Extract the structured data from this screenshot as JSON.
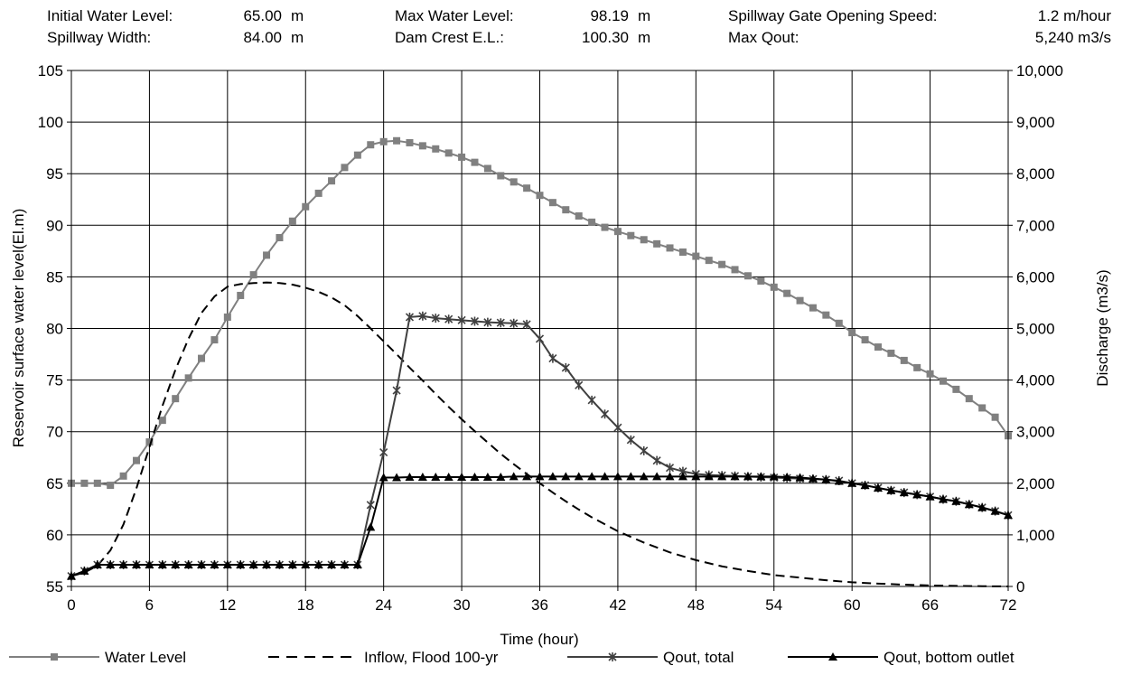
{
  "header": {
    "initial_water_level": {
      "label": "Initial Water Level:",
      "value": "65.00",
      "unit": "m"
    },
    "spillway_width": {
      "label": "Spillway Width:",
      "value": "84.00",
      "unit": "m"
    },
    "max_water_level": {
      "label": "Max Water Level:",
      "value": "98.19",
      "unit": "m"
    },
    "dam_crest": {
      "label": "Dam Crest E.L.:",
      "value": "100.30",
      "unit": "m"
    },
    "gate_speed": {
      "label": "Spillway Gate Opening Speed:",
      "value": "1.2 m/hour"
    },
    "max_qout": {
      "label": "Max Qout:",
      "value": "5,240 m3/s"
    }
  },
  "chart_data": {
    "type": "line",
    "xlabel": "Time (hour)",
    "ylabel": "Reservoir surface water level(El.m)",
    "y2label": "Discharge (m3/s)",
    "xlim": [
      0,
      72
    ],
    "ylim": [
      55,
      105
    ],
    "y2lim": [
      0,
      10000
    ],
    "x_ticks": [
      0,
      6,
      12,
      18,
      24,
      30,
      36,
      42,
      48,
      54,
      60,
      66,
      72
    ],
    "x_tick_labels": [
      "0",
      "6",
      "12",
      "18",
      "24",
      "30",
      "36",
      "42",
      "48",
      "54",
      "60",
      "66",
      "72"
    ],
    "y_ticks": [
      55,
      60,
      65,
      70,
      75,
      80,
      85,
      90,
      95,
      100,
      105
    ],
    "y_tick_labels": [
      "55",
      "60",
      "65",
      "70",
      "75",
      "80",
      "85",
      "90",
      "95",
      "100",
      "105"
    ],
    "y2_ticks": [
      0,
      1000,
      2000,
      3000,
      4000,
      5000,
      6000,
      7000,
      8000,
      9000,
      10000
    ],
    "y2_tick_labels": [
      "0",
      "1,000",
      "2,000",
      "3,000",
      "4,000",
      "5,000",
      "6,000",
      "7,000",
      "8,000",
      "9,000",
      "10,000"
    ],
    "grid": true,
    "legend_position": "bottom",
    "series": [
      {
        "name": "Water Level",
        "axis": "left",
        "marker": "square",
        "color": "#808080",
        "x": [
          0,
          1,
          2,
          3,
          4,
          5,
          6,
          7,
          8,
          9,
          10,
          11,
          12,
          13,
          14,
          15,
          16,
          17,
          18,
          19,
          20,
          21,
          22,
          23,
          24,
          25,
          26,
          27,
          28,
          29,
          30,
          31,
          32,
          33,
          34,
          35,
          36,
          37,
          38,
          39,
          40,
          41,
          42,
          43,
          44,
          45,
          46,
          47,
          48,
          49,
          50,
          51,
          52,
          53,
          54,
          55,
          56,
          57,
          58,
          59,
          60,
          61,
          62,
          63,
          64,
          65,
          66,
          67,
          68,
          69,
          70,
          71,
          72
        ],
        "y": [
          65.0,
          65.0,
          65.0,
          64.8,
          65.7,
          67.2,
          69.0,
          71.1,
          73.2,
          75.2,
          77.1,
          78.9,
          81.1,
          83.2,
          85.2,
          87.1,
          88.8,
          90.4,
          91.8,
          93.1,
          94.3,
          95.6,
          96.8,
          97.8,
          98.1,
          98.19,
          98.0,
          97.7,
          97.4,
          97.0,
          96.6,
          96.1,
          95.5,
          94.8,
          94.2,
          93.6,
          92.9,
          92.2,
          91.5,
          90.9,
          90.3,
          89.8,
          89.4,
          89.0,
          88.6,
          88.2,
          87.8,
          87.4,
          87.0,
          86.6,
          86.2,
          85.7,
          85.1,
          84.6,
          84.0,
          83.4,
          82.7,
          82.0,
          81.3,
          80.5,
          79.6,
          78.9,
          78.2,
          77.6,
          76.9,
          76.2,
          75.6,
          74.9,
          74.1,
          73.2,
          72.3,
          71.4,
          69.6
        ]
      },
      {
        "name": "Inflow, Flood 100-yr",
        "axis": "right",
        "marker": "none",
        "style": "dashed",
        "color": "#000000",
        "x": [
          0,
          1,
          2,
          3,
          4,
          5,
          6,
          7,
          8,
          9,
          10,
          11,
          12,
          13,
          14,
          15,
          16,
          17,
          18,
          19,
          20,
          21,
          22,
          23,
          24,
          25,
          26,
          27,
          28,
          29,
          30,
          31,
          32,
          33,
          34,
          35,
          36,
          37,
          38,
          39,
          40,
          42,
          44,
          46,
          48,
          50,
          52,
          54,
          56,
          58,
          60,
          62,
          64,
          66,
          68,
          70,
          72
        ],
        "y": [
          200,
          270,
          400,
          700,
          1200,
          1900,
          2700,
          3500,
          4200,
          4800,
          5300,
          5620,
          5810,
          5860,
          5880,
          5890,
          5880,
          5850,
          5790,
          5710,
          5600,
          5450,
          5240,
          5000,
          4750,
          4500,
          4240,
          3990,
          3730,
          3480,
          3240,
          3010,
          2790,
          2570,
          2370,
          2180,
          2000,
          1820,
          1650,
          1490,
          1340,
          1070,
          850,
          660,
          510,
          390,
          300,
          220,
          170,
          120,
          80,
          55,
          35,
          20,
          10,
          5,
          0
        ]
      },
      {
        "name": "Qout, total",
        "axis": "right",
        "marker": "star",
        "color": "#404040",
        "x": [
          0,
          1,
          2,
          3,
          4,
          5,
          6,
          7,
          8,
          9,
          10,
          11,
          12,
          13,
          14,
          15,
          16,
          17,
          18,
          19,
          20,
          21,
          22,
          23,
          24,
          25,
          26,
          27,
          28,
          29,
          30,
          31,
          32,
          33,
          34,
          35,
          36,
          37,
          38,
          39,
          40,
          41,
          42,
          43,
          44,
          45,
          46,
          47,
          48,
          49,
          50,
          51,
          52,
          53,
          54,
          55,
          56,
          57,
          58,
          59,
          60,
          61,
          62,
          63,
          64,
          65,
          66,
          67,
          68,
          69,
          70,
          71,
          72
        ],
        "y": [
          200,
          300,
          420,
          420,
          420,
          420,
          420,
          420,
          420,
          420,
          420,
          420,
          420,
          420,
          420,
          420,
          420,
          420,
          420,
          420,
          420,
          420,
          420,
          1580,
          2600,
          3800,
          5220,
          5240,
          5200,
          5180,
          5160,
          5140,
          5120,
          5110,
          5100,
          5080,
          4800,
          4420,
          4240,
          3900,
          3610,
          3340,
          3080,
          2840,
          2630,
          2440,
          2300,
          2230,
          2180,
          2160,
          2150,
          2140,
          2130,
          2120,
          2110,
          2100,
          2090,
          2080,
          2070,
          2050,
          2000,
          1960,
          1910,
          1860,
          1820,
          1780,
          1740,
          1690,
          1650,
          1590,
          1530,
          1460,
          1380
        ]
      },
      {
        "name": "Qout, bottom outlet",
        "axis": "right",
        "marker": "triangle",
        "color": "#000000",
        "x": [
          0,
          1,
          2,
          3,
          4,
          5,
          6,
          7,
          8,
          9,
          10,
          11,
          12,
          13,
          14,
          15,
          16,
          17,
          18,
          19,
          20,
          21,
          22,
          23,
          24,
          25,
          26,
          27,
          28,
          29,
          30,
          31,
          32,
          33,
          34,
          35,
          36,
          37,
          38,
          39,
          40,
          41,
          42,
          43,
          44,
          45,
          46,
          47,
          48,
          49,
          50,
          51,
          52,
          53,
          54,
          55,
          56,
          57,
          58,
          59,
          60,
          61,
          62,
          63,
          64,
          65,
          66,
          67,
          68,
          69,
          70,
          71,
          72
        ],
        "y": [
          200,
          300,
          420,
          420,
          420,
          420,
          420,
          420,
          420,
          420,
          420,
          420,
          420,
          420,
          420,
          420,
          420,
          420,
          420,
          420,
          420,
          420,
          420,
          1150,
          2110,
          2110,
          2120,
          2120,
          2120,
          2120,
          2120,
          2120,
          2120,
          2120,
          2130,
          2130,
          2130,
          2130,
          2130,
          2130,
          2130,
          2130,
          2130,
          2130,
          2130,
          2130,
          2130,
          2130,
          2130,
          2130,
          2130,
          2130,
          2130,
          2130,
          2130,
          2120,
          2110,
          2090,
          2070,
          2040,
          2000,
          1960,
          1910,
          1860,
          1820,
          1780,
          1740,
          1690,
          1650,
          1590,
          1530,
          1460,
          1380
        ]
      }
    ]
  }
}
